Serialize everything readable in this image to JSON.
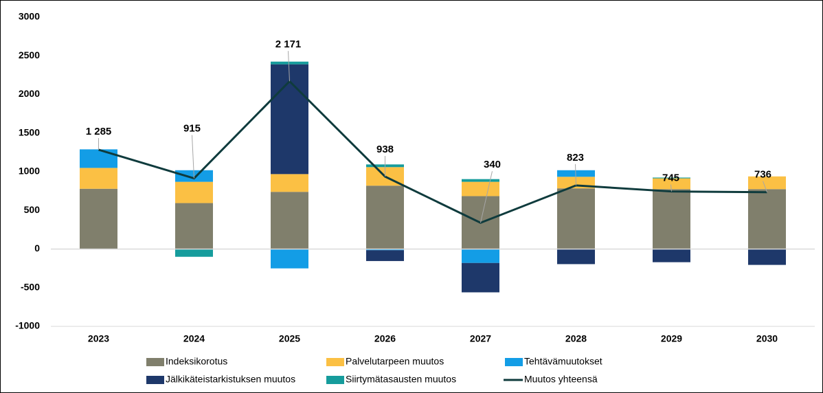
{
  "chart_data": {
    "type": "bar",
    "stacked": true,
    "categories": [
      "2023",
      "2024",
      "2025",
      "2026",
      "2027",
      "2028",
      "2029",
      "2030"
    ],
    "ylim": [
      -1000,
      3000
    ],
    "yticks": [
      -1000,
      -500,
      0,
      500,
      1000,
      1500,
      2000,
      2500,
      3000
    ],
    "legend": "bottom",
    "series": [
      {
        "name": "Indeksikorotus",
        "color": "#807f6c",
        "values": [
          780,
          595,
          740,
          820,
          685,
          785,
          775,
          775
        ]
      },
      {
        "name": "Palvelutarpeen muutos",
        "color": "#fbc044",
        "values": [
          270,
          275,
          230,
          240,
          185,
          150,
          140,
          165
        ]
      },
      {
        "name": "Tehtävämuutokset",
        "color": "#139de6",
        "values": [
          240,
          150,
          -250,
          -15,
          -180,
          85,
          null,
          null
        ]
      },
      {
        "name": "Jälkikäteistarkistuksen muutos",
        "color": "#1e386a",
        "values": [
          null,
          null,
          1420,
          -140,
          -380,
          -195,
          -170,
          -205
        ]
      },
      {
        "name": "Siirtymätasausten muutos",
        "color": "#169c9c",
        "values": [
          null,
          -100,
          35,
          35,
          35,
          null,
          10,
          null
        ]
      },
      {
        "name": "Muutos yhteensä",
        "type": "line",
        "color": "#0f3b3d",
        "values": [
          1285,
          915,
          2171,
          938,
          340,
          823,
          745,
          736
        ],
        "value_labels": [
          "1 285",
          "915",
          "2 171",
          "938",
          "340",
          "823",
          "745",
          "736"
        ]
      }
    ]
  }
}
